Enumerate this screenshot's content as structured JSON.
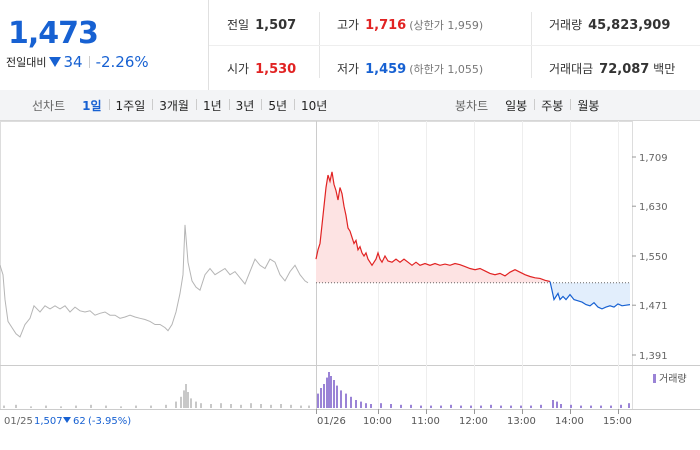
{
  "quote": {
    "price": "1,473",
    "change_label": "전일대비",
    "change_abs": "34",
    "change_pct": "-2.26%",
    "direction": "down"
  },
  "stats": {
    "prev_close": {
      "label": "전일",
      "value": "1,507"
    },
    "high": {
      "label": "고가",
      "value": "1,716",
      "sub": "(상한가 1,959)"
    },
    "volume": {
      "label": "거래량",
      "value": "45,823,909"
    },
    "open": {
      "label": "시가",
      "value": "1,530"
    },
    "low": {
      "label": "저가",
      "value": "1,459",
      "sub": "(하한가 1,055)"
    },
    "amount": {
      "label": "거래대금",
      "value": "72,087",
      "unit": "백만"
    }
  },
  "tabs": {
    "line_label": "선차트",
    "line_items": [
      "1일",
      "1주일",
      "3개월",
      "1년",
      "3년",
      "5년",
      "10년"
    ],
    "line_active": 0,
    "candle_label": "봉차트",
    "candle_items": [
      "일봉",
      "주봉",
      "월봉"
    ]
  },
  "colors": {
    "up": "#e12323",
    "down": "#1761d2",
    "prev": "#b5b5b5",
    "up_fill": "#fde3e3",
    "down_fill": "#e2eefc",
    "volume": "#9a83d6"
  },
  "chart_data": {
    "type": "line",
    "y_ticks": [
      1709,
      1630,
      1550,
      1471,
      1391
    ],
    "y_tick_labels": [
      "1,709",
      "1,630",
      "1,550",
      "1,471",
      "1,391"
    ],
    "ylim": [
      1391,
      1709
    ],
    "reference_price": 1507,
    "x_tick_labels": [
      "01/26",
      "10:00",
      "11:00",
      "12:00",
      "13:00",
      "14:00",
      "15:00"
    ],
    "prev_day": {
      "label": "01/25",
      "close": "1,507",
      "change": "62",
      "change_pct": "(-3.95%)",
      "series": [
        [
          0,
          1535
        ],
        [
          3,
          1520
        ],
        [
          5,
          1480
        ],
        [
          8,
          1445
        ],
        [
          12,
          1435
        ],
        [
          16,
          1425
        ],
        [
          20,
          1420
        ],
        [
          25,
          1440
        ],
        [
          30,
          1450
        ],
        [
          34,
          1470
        ],
        [
          40,
          1460
        ],
        [
          45,
          1470
        ],
        [
          50,
          1465
        ],
        [
          55,
          1470
        ],
        [
          60,
          1465
        ],
        [
          65,
          1470
        ],
        [
          70,
          1460
        ],
        [
          75,
          1468
        ],
        [
          80,
          1462
        ],
        [
          85,
          1460
        ],
        [
          90,
          1462
        ],
        [
          95,
          1455
        ],
        [
          100,
          1458
        ],
        [
          105,
          1460
        ],
        [
          110,
          1455
        ],
        [
          115,
          1455
        ],
        [
          120,
          1450
        ],
        [
          125,
          1452
        ],
        [
          130,
          1455
        ],
        [
          135,
          1452
        ],
        [
          140,
          1450
        ],
        [
          145,
          1448
        ],
        [
          150,
          1445
        ],
        [
          155,
          1440
        ],
        [
          160,
          1440
        ],
        [
          165,
          1435
        ],
        [
          168,
          1430
        ],
        [
          172,
          1440
        ],
        [
          176,
          1460
        ],
        [
          180,
          1490
        ],
        [
          183,
          1520
        ],
        [
          185,
          1600
        ],
        [
          188,
          1540
        ],
        [
          192,
          1510
        ],
        [
          196,
          1500
        ],
        [
          200,
          1495
        ],
        [
          205,
          1520
        ],
        [
          210,
          1530
        ],
        [
          215,
          1520
        ],
        [
          220,
          1525
        ],
        [
          225,
          1530
        ],
        [
          230,
          1520
        ],
        [
          235,
          1525
        ],
        [
          240,
          1515
        ],
        [
          245,
          1505
        ],
        [
          250,
          1525
        ],
        [
          255,
          1545
        ],
        [
          260,
          1535
        ],
        [
          265,
          1530
        ],
        [
          270,
          1545
        ],
        [
          275,
          1540
        ],
        [
          280,
          1520
        ],
        [
          285,
          1510
        ],
        [
          290,
          1525
        ],
        [
          295,
          1535
        ],
        [
          300,
          1520
        ],
        [
          305,
          1510
        ],
        [
          308,
          1507
        ]
      ]
    },
    "series": [
      {
        "segment": "up",
        "values": [
          [
            316,
            1545
          ],
          [
            318,
            1560
          ],
          [
            320,
            1570
          ],
          [
            322,
            1600
          ],
          [
            324,
            1630
          ],
          [
            326,
            1660
          ],
          [
            328,
            1680
          ],
          [
            330,
            1670
          ],
          [
            332,
            1685
          ],
          [
            334,
            1665
          ],
          [
            336,
            1655
          ],
          [
            338,
            1640
          ],
          [
            340,
            1660
          ],
          [
            342,
            1650
          ],
          [
            344,
            1630
          ],
          [
            346,
            1615
          ],
          [
            348,
            1595
          ],
          [
            350,
            1590
          ],
          [
            352,
            1580
          ],
          [
            354,
            1570
          ],
          [
            356,
            1575
          ],
          [
            358,
            1560
          ],
          [
            360,
            1565
          ],
          [
            362,
            1555
          ],
          [
            364,
            1550
          ],
          [
            366,
            1555
          ],
          [
            368,
            1545
          ],
          [
            370,
            1540
          ],
          [
            372,
            1535
          ],
          [
            374,
            1540
          ],
          [
            376,
            1545
          ],
          [
            378,
            1555
          ],
          [
            380,
            1545
          ],
          [
            382,
            1540
          ],
          [
            385,
            1550
          ],
          [
            388,
            1542
          ],
          [
            392,
            1540
          ],
          [
            396,
            1545
          ],
          [
            400,
            1540
          ],
          [
            404,
            1545
          ],
          [
            408,
            1540
          ],
          [
            412,
            1535
          ],
          [
            416,
            1540
          ],
          [
            420,
            1535
          ],
          [
            425,
            1538
          ],
          [
            430,
            1535
          ],
          [
            435,
            1538
          ],
          [
            440,
            1535
          ],
          [
            445,
            1537
          ],
          [
            450,
            1535
          ],
          [
            455,
            1538
          ],
          [
            460,
            1536
          ],
          [
            465,
            1533
          ],
          [
            470,
            1530
          ],
          [
            475,
            1528
          ],
          [
            480,
            1530
          ],
          [
            485,
            1526
          ],
          [
            490,
            1522
          ],
          [
            495,
            1520
          ],
          [
            500,
            1522
          ],
          [
            505,
            1518
          ],
          [
            510,
            1524
          ],
          [
            515,
            1528
          ],
          [
            520,
            1524
          ],
          [
            525,
            1520
          ],
          [
            530,
            1517
          ],
          [
            535,
            1515
          ],
          [
            540,
            1514
          ],
          [
            545,
            1511
          ],
          [
            550,
            1509
          ]
        ]
      },
      {
        "segment": "down",
        "values": [
          [
            550,
            1509
          ],
          [
            552,
            1495
          ],
          [
            554,
            1480
          ],
          [
            556,
            1485
          ],
          [
            558,
            1490
          ],
          [
            560,
            1480
          ],
          [
            563,
            1485
          ],
          [
            566,
            1480
          ],
          [
            570,
            1488
          ],
          [
            574,
            1480
          ],
          [
            578,
            1478
          ],
          [
            582,
            1476
          ],
          [
            586,
            1472
          ],
          [
            590,
            1470
          ],
          [
            594,
            1475
          ],
          [
            598,
            1468
          ],
          [
            602,
            1465
          ],
          [
            606,
            1468
          ],
          [
            610,
            1470
          ],
          [
            614,
            1468
          ],
          [
            618,
            1473
          ],
          [
            622,
            1470
          ],
          [
            626,
            1471
          ],
          [
            630,
            1472
          ]
        ]
      }
    ],
    "volume_label": "거래량",
    "volume": {
      "prev": [
        [
          3,
          3
        ],
        [
          15,
          4
        ],
        [
          30,
          2
        ],
        [
          45,
          3
        ],
        [
          60,
          2
        ],
        [
          75,
          3
        ],
        [
          90,
          4
        ],
        [
          105,
          3
        ],
        [
          120,
          2
        ],
        [
          135,
          3
        ],
        [
          150,
          3
        ],
        [
          165,
          4
        ],
        [
          175,
          8
        ],
        [
          180,
          14
        ],
        [
          183,
          22
        ],
        [
          185,
          30
        ],
        [
          187,
          20
        ],
        [
          190,
          12
        ],
        [
          195,
          8
        ],
        [
          200,
          6
        ],
        [
          210,
          5
        ],
        [
          220,
          6
        ],
        [
          230,
          5
        ],
        [
          240,
          4
        ],
        [
          250,
          6
        ],
        [
          260,
          5
        ],
        [
          270,
          4
        ],
        [
          280,
          5
        ],
        [
          290,
          4
        ],
        [
          300,
          3
        ],
        [
          308,
          3
        ]
      ],
      "today": [
        [
          317,
          18
        ],
        [
          320,
          25
        ],
        [
          323,
          30
        ],
        [
          326,
          38
        ],
        [
          328,
          45
        ],
        [
          330,
          40
        ],
        [
          333,
          35
        ],
        [
          336,
          28
        ],
        [
          340,
          22
        ],
        [
          345,
          18
        ],
        [
          350,
          14
        ],
        [
          355,
          10
        ],
        [
          360,
          8
        ],
        [
          365,
          6
        ],
        [
          370,
          5
        ],
        [
          380,
          6
        ],
        [
          390,
          5
        ],
        [
          400,
          4
        ],
        [
          410,
          4
        ],
        [
          420,
          3
        ],
        [
          430,
          3
        ],
        [
          440,
          3
        ],
        [
          450,
          4
        ],
        [
          460,
          3
        ],
        [
          470,
          3
        ],
        [
          480,
          3
        ],
        [
          490,
          4
        ],
        [
          500,
          3
        ],
        [
          510,
          3
        ],
        [
          520,
          3
        ],
        [
          530,
          3
        ],
        [
          540,
          4
        ],
        [
          552,
          10
        ],
        [
          556,
          8
        ],
        [
          560,
          5
        ],
        [
          570,
          4
        ],
        [
          580,
          3
        ],
        [
          590,
          3
        ],
        [
          600,
          3
        ],
        [
          610,
          3
        ],
        [
          620,
          4
        ],
        [
          628,
          6
        ]
      ]
    }
  }
}
